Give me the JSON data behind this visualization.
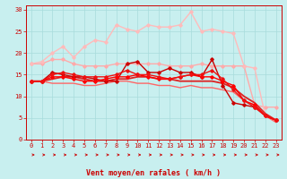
{
  "title": "",
  "xlabel": "Vent moyen/en rafales ( km/h )",
  "ylabel": "",
  "xlim": [
    -0.5,
    23.5
  ],
  "ylim": [
    0,
    31
  ],
  "yticks": [
    0,
    5,
    10,
    15,
    20,
    25,
    30
  ],
  "xticks": [
    0,
    1,
    2,
    3,
    4,
    5,
    6,
    7,
    8,
    9,
    10,
    11,
    12,
    13,
    14,
    15,
    16,
    17,
    18,
    19,
    20,
    21,
    22,
    23
  ],
  "bg_color": "#c8efef",
  "grid_color": "#a8dcdc",
  "series": [
    {
      "x": [
        0,
        1,
        2,
        3,
        4,
        5,
        6,
        7,
        8,
        9,
        10,
        11,
        12,
        13,
        14,
        15,
        16,
        17,
        18,
        19,
        20,
        21,
        22,
        23
      ],
      "y": [
        17.5,
        17.5,
        18.5,
        18.5,
        17.5,
        17.0,
        17.0,
        17.0,
        17.5,
        17.5,
        17.5,
        17.5,
        17.5,
        17.0,
        17.0,
        17.0,
        17.5,
        17.0,
        17.0,
        17.0,
        17.0,
        8.0,
        7.5,
        7.5
      ],
      "color": "#ffaaaa",
      "marker": "D",
      "markersize": 1.8,
      "linewidth": 1.0,
      "zorder": 2
    },
    {
      "x": [
        0,
        1,
        2,
        3,
        4,
        5,
        6,
        7,
        8,
        9,
        10,
        11,
        12,
        13,
        14,
        15,
        16,
        17,
        18,
        19,
        20,
        21,
        22,
        23
      ],
      "y": [
        17.5,
        18.0,
        20.0,
        21.5,
        19.0,
        21.5,
        23.0,
        22.5,
        26.5,
        25.5,
        25.0,
        26.5,
        26.0,
        26.0,
        26.5,
        29.5,
        25.0,
        25.5,
        25.0,
        24.5,
        17.0,
        16.5,
        5.5,
        4.5
      ],
      "color": "#ffbbbb",
      "marker": "D",
      "markersize": 1.8,
      "linewidth": 1.0,
      "zorder": 2
    },
    {
      "x": [
        0,
        1,
        2,
        3,
        4,
        5,
        6,
        7,
        8,
        9,
        10,
        11,
        12,
        13,
        14,
        15,
        16,
        17,
        18,
        19,
        20,
        21,
        22,
        23
      ],
      "y": [
        13.5,
        13.5,
        14.0,
        14.5,
        14.5,
        14.0,
        13.5,
        13.5,
        14.0,
        14.0,
        14.5,
        14.5,
        14.0,
        14.0,
        13.5,
        13.5,
        13.5,
        13.5,
        13.0,
        12.0,
        10.0,
        8.5,
        6.0,
        4.5
      ],
      "color": "#dd2222",
      "marker": null,
      "markersize": 0,
      "linewidth": 1.3,
      "zorder": 3
    },
    {
      "x": [
        0,
        1,
        2,
        3,
        4,
        5,
        6,
        7,
        8,
        9,
        10,
        11,
        12,
        13,
        14,
        15,
        16,
        17,
        18,
        19,
        20,
        21,
        22,
        23
      ],
      "y": [
        13.5,
        13.5,
        13.0,
        13.0,
        13.0,
        12.5,
        12.5,
        13.0,
        13.5,
        13.5,
        13.0,
        13.0,
        12.5,
        12.5,
        12.0,
        12.5,
        12.0,
        12.0,
        11.5,
        11.0,
        9.0,
        8.0,
        5.5,
        4.0
      ],
      "color": "#ff6666",
      "marker": null,
      "markersize": 0,
      "linewidth": 1.0,
      "zorder": 2
    },
    {
      "x": [
        0,
        1,
        2,
        3,
        4,
        5,
        6,
        7,
        8,
        9,
        10,
        11,
        12,
        13,
        14,
        15,
        16,
        17,
        18,
        19,
        20,
        21,
        22,
        23
      ],
      "y": [
        13.5,
        13.5,
        15.5,
        15.0,
        14.5,
        14.5,
        14.0,
        13.5,
        13.5,
        17.5,
        18.0,
        15.5,
        15.5,
        16.5,
        15.5,
        15.5,
        14.5,
        18.5,
        12.5,
        8.5,
        8.0,
        7.5,
        5.5,
        4.5
      ],
      "color": "#cc0000",
      "marker": "D",
      "markersize": 1.8,
      "linewidth": 1.0,
      "zorder": 3
    },
    {
      "x": [
        0,
        1,
        2,
        3,
        4,
        5,
        6,
        7,
        8,
        9,
        10,
        11,
        12,
        13,
        14,
        15,
        16,
        17,
        18,
        19,
        20,
        21,
        22,
        23
      ],
      "y": [
        13.5,
        13.5,
        14.5,
        14.5,
        14.0,
        13.5,
        13.5,
        14.0,
        14.5,
        14.5,
        15.0,
        14.5,
        14.0,
        14.0,
        14.5,
        15.0,
        14.5,
        14.5,
        13.5,
        12.5,
        9.0,
        8.0,
        5.5,
        4.5
      ],
      "color": "#ff0000",
      "marker": "D",
      "markersize": 1.8,
      "linewidth": 1.0,
      "zorder": 3
    },
    {
      "x": [
        0,
        1,
        2,
        3,
        4,
        5,
        6,
        7,
        8,
        9,
        10,
        11,
        12,
        13,
        14,
        15,
        16,
        17,
        18,
        19,
        20,
        21,
        22,
        23
      ],
      "y": [
        13.5,
        13.5,
        15.0,
        15.5,
        15.0,
        14.5,
        14.5,
        14.5,
        15.0,
        16.0,
        15.0,
        15.0,
        14.5,
        14.0,
        14.5,
        15.0,
        15.0,
        16.0,
        14.0,
        11.5,
        9.0,
        7.5,
        5.5,
        4.5
      ],
      "color": "#ee1111",
      "marker": "D",
      "markersize": 1.8,
      "linewidth": 1.0,
      "zorder": 3
    }
  ],
  "xlabel_color": "#cc0000",
  "xlabel_fontsize": 6,
  "tick_color": "#cc0000",
  "tick_fontsize": 5,
  "axis_color": "#cc0000",
  "arrow_color": "#cc0000"
}
